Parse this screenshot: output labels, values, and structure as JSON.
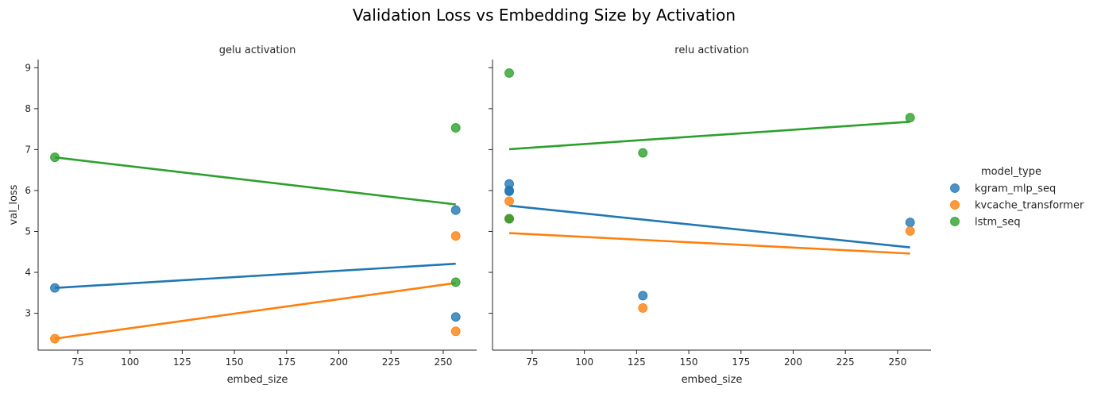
{
  "title": "Validation Loss vs Embedding Size by Activation",
  "colors": {
    "kgram_mlp_seq": "#1f77b4",
    "kvcache_transformer": "#ff7f0e",
    "lstm_seq": "#2ca02c"
  },
  "legend": {
    "title": "model_type",
    "placement": "center-right",
    "entries": [
      "kgram_mlp_seq",
      "kvcache_transformer",
      "lstm_seq"
    ]
  },
  "chart_data": [
    {
      "type": "scatter",
      "title": "gelu activation",
      "xlabel": "embed_size",
      "ylabel": "val_loss",
      "xlim": [
        56,
        266
      ],
      "ylim": [
        2.1,
        9.2
      ],
      "xticks": [
        75,
        100,
        125,
        150,
        175,
        200,
        225,
        250
      ],
      "yticks": [
        3,
        4,
        5,
        6,
        7,
        8,
        9
      ],
      "series": [
        {
          "name": "kgram_mlp_seq",
          "points": [
            [
              64,
              3.62
            ],
            [
              256,
              5.52
            ],
            [
              256,
              2.91
            ]
          ],
          "fit": [
            [
              64,
              3.62
            ],
            [
              256,
              4.21
            ]
          ]
        },
        {
          "name": "kvcache_transformer",
          "points": [
            [
              64,
              2.38
            ],
            [
              256,
              4.89
            ],
            [
              256,
              2.56
            ]
          ],
          "fit": [
            [
              64,
              2.38
            ],
            [
              256,
              3.74
            ]
          ]
        },
        {
          "name": "lstm_seq",
          "points": [
            [
              64,
              6.81
            ],
            [
              256,
              7.53
            ],
            [
              256,
              3.76
            ]
          ],
          "fit": [
            [
              64,
              6.81
            ],
            [
              256,
              5.66
            ]
          ]
        }
      ]
    },
    {
      "type": "scatter",
      "title": "relu activation",
      "xlabel": "embed_size",
      "ylabel": "",
      "xlim": [
        56,
        266
      ],
      "ylim": [
        2.1,
        9.2
      ],
      "xticks": [
        75,
        100,
        125,
        150,
        175,
        200,
        225,
        250
      ],
      "yticks": [
        3,
        4,
        5,
        6,
        7,
        8,
        9
      ],
      "series": [
        {
          "name": "kgram_mlp_seq",
          "points": [
            [
              64,
              6.16
            ],
            [
              64,
              6.0
            ],
            [
              64,
              5.98
            ],
            [
              64,
              5.31
            ],
            [
              128,
              3.43
            ],
            [
              256,
              5.22
            ]
          ],
          "fit": [
            [
              64,
              5.63
            ],
            [
              256,
              4.61
            ]
          ]
        },
        {
          "name": "kvcache_transformer",
          "points": [
            [
              64,
              5.74
            ],
            [
              64,
              5.31
            ],
            [
              128,
              3.13
            ],
            [
              256,
              5.01
            ]
          ],
          "fit": [
            [
              64,
              4.96
            ],
            [
              256,
              4.46
            ]
          ]
        },
        {
          "name": "lstm_seq",
          "points": [
            [
              64,
              8.87
            ],
            [
              64,
              5.31
            ],
            [
              128,
              6.92
            ],
            [
              256,
              7.78
            ]
          ],
          "fit": [
            [
              64,
              7.01
            ],
            [
              256,
              7.68
            ]
          ]
        }
      ]
    }
  ]
}
